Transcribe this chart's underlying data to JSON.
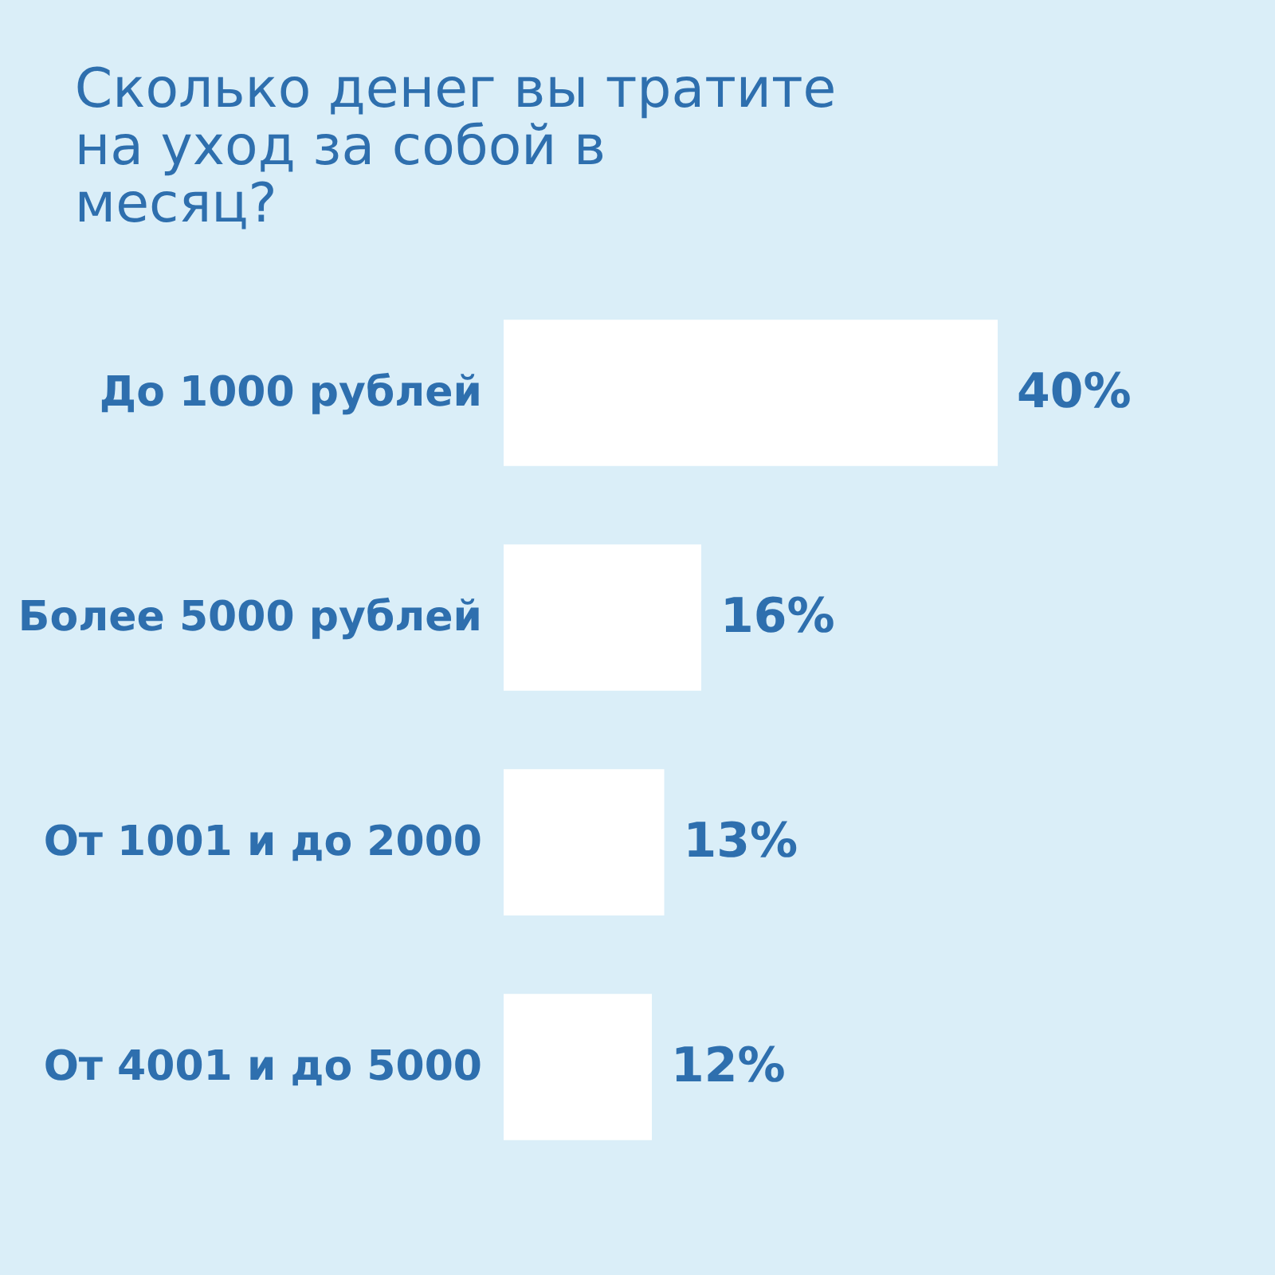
{
  "chart_data": {
    "type": "bar",
    "orientation": "horizontal",
    "title": "Сколько денег вы тратите на уход за собой в месяц?",
    "categories": [
      "До 1000 рублей",
      "Более 5000 рублей",
      "От 1001 и до 2000",
      "От 4001 и до 5000"
    ],
    "values": [
      40,
      16,
      13,
      12
    ],
    "value_labels": [
      "40%",
      "16%",
      "13%",
      "12%"
    ],
    "color": "#ffffff",
    "grid": false,
    "tick_labels": "y"
  }
}
